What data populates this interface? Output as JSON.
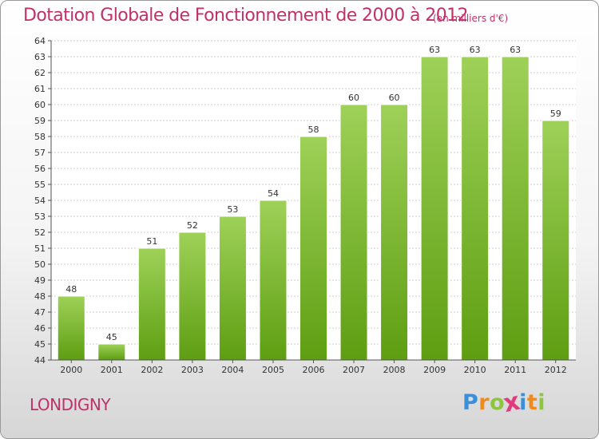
{
  "title": "Dotation Globale de Fonctionnement de 2000 à 2012",
  "unit_note": "(en milliers d'€)",
  "location": "LONDIGNY",
  "logo": {
    "text": "Proxiti",
    "letters": [
      {
        "ch": "P",
        "color": "#3a8fd8"
      },
      {
        "ch": "r",
        "color": "#f08a1c"
      },
      {
        "ch": "o",
        "color": "#8cc63f"
      },
      {
        "ch": "x",
        "color": "#e23b7b"
      },
      {
        "ch": "i",
        "color": "#3a8fd8"
      },
      {
        "ch": "t",
        "color": "#f08a1c"
      },
      {
        "ch": "i",
        "color": "#8cc63f"
      }
    ]
  },
  "colors": {
    "title": "#c0306a",
    "bar_top": "#9ed158",
    "bar_bottom": "#5e9e12",
    "grid": "#cccccc",
    "axis": "#555555"
  },
  "chart_data": {
    "type": "bar",
    "categories": [
      "2000",
      "2001",
      "2002",
      "2003",
      "2004",
      "2005",
      "2006",
      "2007",
      "2008",
      "2009",
      "2010",
      "2011",
      "2012"
    ],
    "values": [
      48,
      45,
      51,
      52,
      53,
      54,
      58,
      60,
      60,
      63,
      63,
      63,
      59
    ],
    "data_labels": [
      "48",
      "45",
      "51",
      "52",
      "53",
      "54",
      "58",
      "60",
      "60",
      "63",
      "63",
      "63",
      "59"
    ],
    "ylim": [
      44,
      64
    ],
    "yticks": [
      44,
      45,
      46,
      47,
      48,
      49,
      50,
      51,
      52,
      53,
      54,
      55,
      56,
      57,
      58,
      59,
      60,
      61,
      62,
      63,
      64
    ],
    "grid": true,
    "legend": "none"
  }
}
